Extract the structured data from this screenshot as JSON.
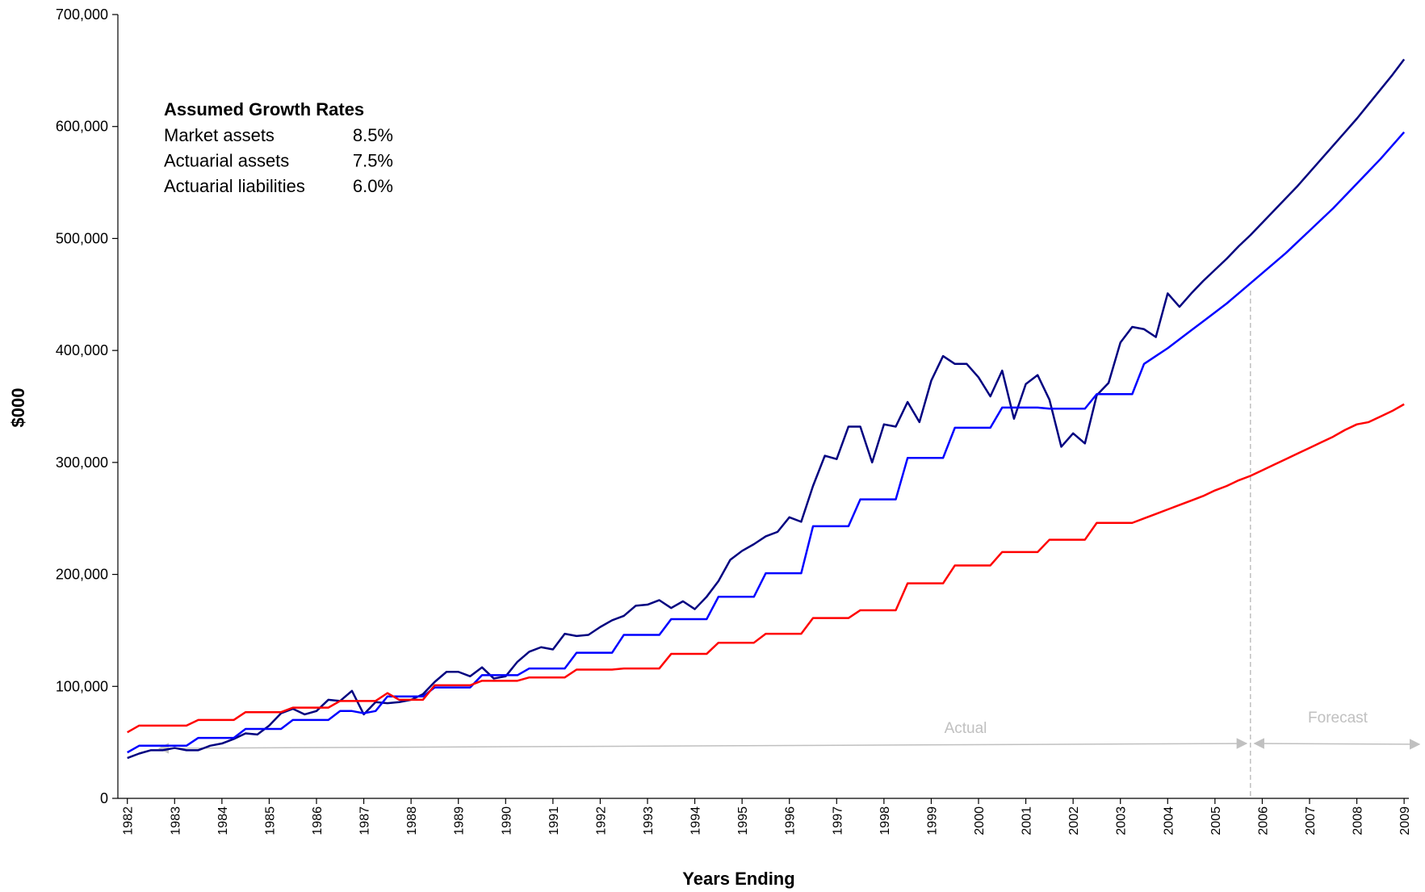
{
  "chart_data": {
    "type": "line",
    "x_label": "Years Ending",
    "y_label": "$000",
    "xlim": [
      1981.8,
      2009.1
    ],
    "ylim": [
      0,
      700000
    ],
    "xticks": [
      1982,
      1983,
      1984,
      1985,
      1986,
      1987,
      1988,
      1989,
      1990,
      1991,
      1992,
      1993,
      1994,
      1995,
      1996,
      1997,
      1998,
      1999,
      2000,
      2001,
      2002,
      2003,
      2004,
      2005,
      2006,
      2007,
      2008,
      2009
    ],
    "yticks": [
      0,
      {
        "value": 100000,
        "label": "100,000"
      },
      {
        "value": 200000,
        "label": "200,000"
      },
      {
        "value": 300000,
        "label": "300,000"
      },
      {
        "value": 400000,
        "label": "400,000"
      },
      {
        "value": 500000,
        "label": "500,000"
      },
      {
        "value": 600000,
        "label": "600,000"
      },
      {
        "value": 700000,
        "label": "700,000"
      }
    ],
    "grid": false,
    "growth_rates": {
      "title": "Assumed Growth Rates",
      "rows": [
        [
          "Market assets",
          "8.5%"
        ],
        [
          "Actuarial assets",
          "7.5%"
        ],
        [
          "Actuarial liabilities",
          "6.0%"
        ]
      ]
    },
    "period_labels": {
      "actual": "Actual",
      "forecast": "Forecast"
    },
    "forecast_start": 2005.75,
    "x": [
      1982,
      1982.25,
      1982.5,
      1982.75,
      1983,
      1983.25,
      1983.5,
      1983.75,
      1984,
      1984.25,
      1984.5,
      1984.75,
      1985,
      1985.25,
      1985.5,
      1985.75,
      1986,
      1986.25,
      1986.5,
      1986.75,
      1987,
      1987.25,
      1987.5,
      1987.75,
      1988,
      1988.25,
      1988.5,
      1988.75,
      1989,
      1989.25,
      1989.5,
      1989.75,
      1990,
      1990.25,
      1990.5,
      1990.75,
      1991,
      1991.25,
      1991.5,
      1991.75,
      1992,
      1992.25,
      1992.5,
      1992.75,
      1993,
      1993.25,
      1993.5,
      1993.75,
      1994,
      1994.25,
      1994.5,
      1994.75,
      1995,
      1995.25,
      1995.5,
      1995.75,
      1996,
      1996.25,
      1996.5,
      1996.75,
      1997,
      1997.25,
      1997.5,
      1997.75,
      1998,
      1998.25,
      1998.5,
      1998.75,
      1999,
      1999.25,
      1999.5,
      1999.75,
      2000,
      2000.25,
      2000.5,
      2000.75,
      2001,
      2001.25,
      2001.5,
      2001.75,
      2002,
      2002.25,
      2002.5,
      2002.75,
      2003,
      2003.25,
      2003.5,
      2003.75,
      2004,
      2004.25,
      2004.5,
      2004.75,
      2005,
      2005.25,
      2005.5,
      2005.75,
      2006,
      2006.25,
      2006.5,
      2006.75,
      2007,
      2007.25,
      2007.5,
      2007.75,
      2008,
      2008.25,
      2008.5,
      2008.75,
      2009
    ],
    "series": [
      {
        "color": "#000080",
        "values": [
          36000,
          40000,
          43000,
          43000,
          45000,
          43000,
          43000,
          47000,
          49000,
          53000,
          58000,
          57000,
          65000,
          76000,
          80000,
          75000,
          78000,
          88000,
          87000,
          96000,
          75000,
          86000,
          85000,
          86000,
          88000,
          93000,
          104000,
          113000,
          113000,
          109000,
          117000,
          107000,
          109000,
          122000,
          131000,
          135000,
          133000,
          147000,
          145000,
          146000,
          153000,
          159000,
          163000,
          172000,
          173000,
          177000,
          170000,
          176000,
          169000,
          180000,
          194000,
          213000,
          221000,
          227000,
          234000,
          238000,
          251000,
          247000,
          279000,
          306000,
          303000,
          332000,
          332000,
          300000,
          334000,
          332000,
          354000,
          336000,
          373000,
          395000,
          388000,
          388000,
          376000,
          359000,
          382000,
          339000,
          370000,
          378000,
          356000,
          314000,
          326000,
          317000,
          360000,
          371000,
          407000,
          421000,
          419000,
          412000,
          451000,
          439000,
          451000,
          462000,
          472000,
          482000,
          493000,
          503000,
          514000,
          525000,
          536000,
          547000,
          559000,
          571000,
          583000,
          595000,
          607000,
          620000,
          633000,
          646000,
          660000
        ]
      },
      {
        "color": "#0000ff",
        "values": [
          41000,
          47000,
          47000,
          47000,
          47000,
          47000,
          54000,
          54000,
          54000,
          54000,
          62000,
          62000,
          62000,
          62000,
          70000,
          70000,
          70000,
          70000,
          78000,
          78000,
          76000,
          78000,
          91000,
          91000,
          91000,
          91000,
          99000,
          99000,
          99000,
          99000,
          110000,
          110000,
          110000,
          110000,
          116000,
          116000,
          116000,
          116000,
          130000,
          130000,
          130000,
          130000,
          146000,
          146000,
          146000,
          146000,
          160000,
          160000,
          160000,
          160000,
          180000,
          180000,
          180000,
          180000,
          201000,
          201000,
          201000,
          201000,
          243000,
          243000,
          243000,
          243000,
          267000,
          267000,
          267000,
          267000,
          304000,
          304000,
          304000,
          304000,
          331000,
          331000,
          331000,
          331000,
          349000,
          349000,
          349000,
          349000,
          348000,
          348000,
          348000,
          348000,
          361000,
          361000,
          361000,
          361000,
          388000,
          395000,
          402000,
          410000,
          418000,
          426000,
          434000,
          442000,
          451000,
          460000,
          469000,
          478000,
          487000,
          497000,
          507000,
          517000,
          527000,
          538000,
          549000,
          560000,
          571000,
          583000,
          595000
        ]
      },
      {
        "color": "#ff0000",
        "values": [
          59000,
          65000,
          65000,
          65000,
          65000,
          65000,
          70000,
          70000,
          70000,
          70000,
          77000,
          77000,
          77000,
          77000,
          81000,
          81000,
          81000,
          81000,
          87000,
          87000,
          87000,
          87000,
          94000,
          88000,
          88000,
          88000,
          101000,
          101000,
          101000,
          101000,
          105000,
          105000,
          105000,
          105000,
          108000,
          108000,
          108000,
          108000,
          115000,
          115000,
          115000,
          115000,
          116000,
          116000,
          116000,
          116000,
          129000,
          129000,
          129000,
          129000,
          139000,
          139000,
          139000,
          139000,
          147000,
          147000,
          147000,
          147000,
          161000,
          161000,
          161000,
          161000,
          168000,
          168000,
          168000,
          168000,
          192000,
          192000,
          192000,
          192000,
          208000,
          208000,
          208000,
          208000,
          220000,
          220000,
          220000,
          220000,
          231000,
          231000,
          231000,
          231000,
          246000,
          246000,
          246000,
          246000,
          250000,
          254000,
          258000,
          262000,
          266000,
          270000,
          275000,
          279000,
          284000,
          288000,
          293000,
          298000,
          303000,
          308000,
          313000,
          318000,
          323000,
          329000,
          334000,
          336000,
          341000,
          346000,
          352000
        ]
      }
    ]
  }
}
